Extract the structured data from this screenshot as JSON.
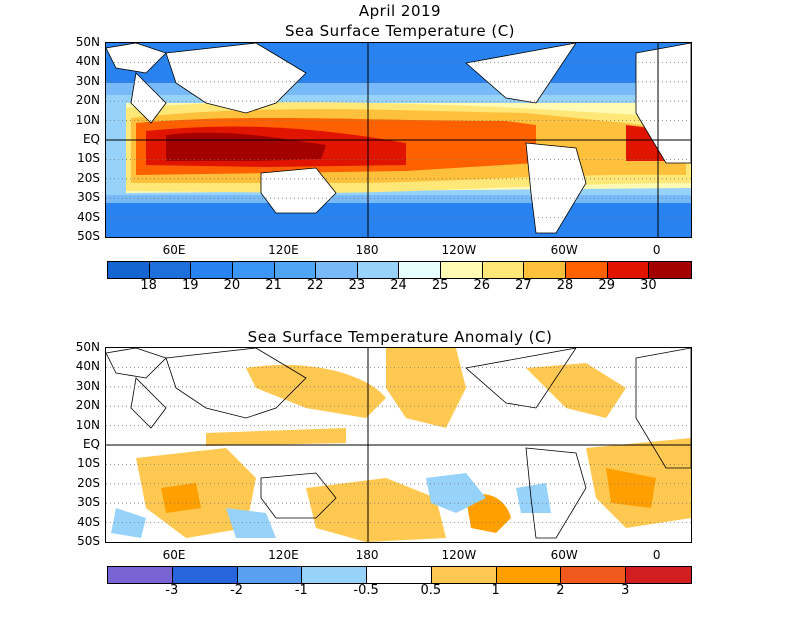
{
  "title": "April 2019",
  "panels": [
    {
      "title": "Sea Surface Temperature (C)",
      "y_labels": [
        "50N",
        "40N",
        "30N",
        "20N",
        "10N",
        "EQ",
        "10S",
        "20S",
        "30S",
        "40S",
        "50S"
      ],
      "x_labels": [
        "60E",
        "120E",
        "180",
        "120W",
        "60W",
        "0"
      ],
      "colorbar": {
        "colors": [
          "#1464d2",
          "#1e6edc",
          "#2882f0",
          "#3c96f5",
          "#50a5f5",
          "#78b9fa",
          "#96d2fa",
          "#e6ffff",
          "#fffab4",
          "#ffe878",
          "#ffc03c",
          "#ff6000",
          "#e11400",
          "#a50000"
        ],
        "labels": [
          "18",
          "19",
          "20",
          "21",
          "22",
          "23",
          "24",
          "25",
          "26",
          "27",
          "28",
          "29",
          "30"
        ]
      }
    },
    {
      "title": "Sea Surface Temperature Anomaly (C)",
      "y_labels": [
        "50N",
        "40N",
        "30N",
        "20N",
        "10N",
        "EQ",
        "10S",
        "20S",
        "30S",
        "40S",
        "50S"
      ],
      "x_labels": [
        "60E",
        "120E",
        "180",
        "120W",
        "60W",
        "0"
      ],
      "colorbar": {
        "colors": [
          "#7864d2",
          "#2864dc",
          "#5aa0f0",
          "#96d2fa",
          "#ffffff",
          "#ffc850",
          "#ffa000",
          "#f05a1e",
          "#d21e1e"
        ],
        "labels": [
          "-3",
          "-2",
          "-1",
          "-0.5",
          "0.5",
          "1",
          "2",
          "3"
        ]
      }
    }
  ]
}
